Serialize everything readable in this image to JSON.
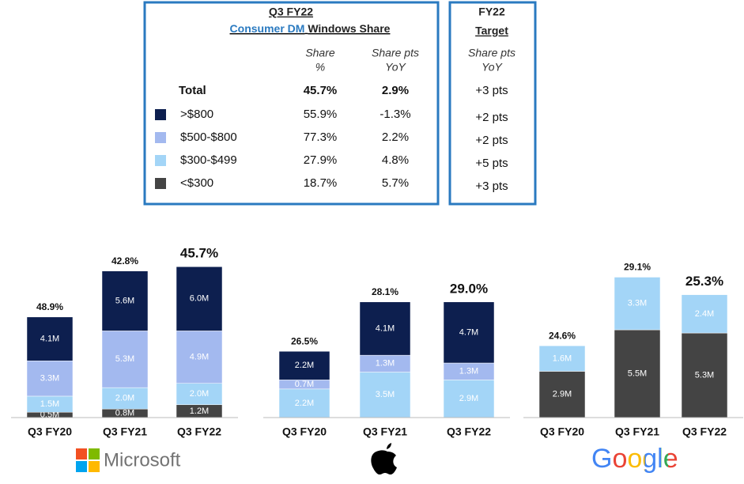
{
  "table": {
    "title": "Q3 FY22",
    "subtitle_link": "Consumer DM",
    "subtitle_rest": "Windows Share",
    "share_header": [
      "Share",
      "%"
    ],
    "yoy_header": [
      "Share pts",
      "YoY"
    ],
    "target_title": [
      "FY22",
      "Target"
    ],
    "target_header": [
      "Share pts",
      "YoY"
    ],
    "rows": [
      {
        "label": "Total",
        "share": "45.7%",
        "yoy": "2.9%",
        "target": "+3 pts"
      },
      {
        "label": ">$800",
        "color": "#0d1f4f",
        "share": "55.9%",
        "yoy": "-1.3%",
        "target": "+2 pts"
      },
      {
        "label": "$500-$800",
        "color": "#a3b9ef",
        "share": "77.3%",
        "yoy": "2.2%",
        "target": "+2 pts"
      },
      {
        "label": "$300-$499",
        "color": "#a3d5f7",
        "share": "27.9%",
        "yoy": "4.8%",
        "target": "+5 pts"
      },
      {
        "label": "<$300",
        "color": "#444444",
        "share": "18.7%",
        "yoy": "5.7%",
        "target": "+3 pts"
      }
    ]
  },
  "chart_data": [
    {
      "type": "bar",
      "stacked": true,
      "brand": "Microsoft",
      "categories": [
        "Q3 FY20",
        "Q3 FY21",
        "Q3 FY22"
      ],
      "ylim": [
        0,
        17
      ],
      "series": [
        {
          "color": "#444444",
          "values": [
            0.5,
            0.8,
            1.2
          ],
          "value_labels": [
            "0.5M",
            "0.8M",
            "1.2M"
          ]
        },
        {
          "color": "#a3d5f7",
          "values": [
            1.5,
            2.0,
            2.0
          ],
          "value_labels": [
            "1.5M",
            "2.0M",
            "2.0M"
          ]
        },
        {
          "color": "#a3b9ef",
          "values": [
            3.3,
            5.3,
            4.9
          ],
          "value_labels": [
            "3.3M",
            "5.3M",
            "4.9M"
          ]
        },
        {
          "color": "#0d1f4f",
          "values": [
            4.1,
            5.6,
            6.0
          ],
          "value_labels": [
            "4.1M",
            "5.6M",
            "6.0M"
          ]
        }
      ],
      "share": {
        "values": [
          48.9,
          42.8,
          45.7
        ],
        "value_labels": [
          "48.9%",
          "42.8%",
          "45.7%"
        ]
      }
    },
    {
      "type": "bar",
      "stacked": true,
      "categories": [
        "Q3 FY20",
        "Q3 FY21",
        "Q3 FY22"
      ],
      "ylim": [
        0,
        14
      ],
      "series": [
        {
          "color": "#a3d5f7",
          "values": [
            2.2,
            3.5,
            2.9
          ],
          "value_labels": [
            "2.2M",
            "3.5M",
            "2.9M"
          ]
        },
        {
          "color": "#a3b9ef",
          "values": [
            0.7,
            1.3,
            1.3
          ],
          "value_labels": [
            "0.7M",
            "1.3M",
            "1.3M"
          ]
        },
        {
          "color": "#0d1f4f",
          "values": [
            2.2,
            4.1,
            4.7
          ],
          "value_labels": [
            "2.2M",
            "4.1M",
            "4.7M"
          ]
        }
      ],
      "share": {
        "values": [
          26.5,
          28.1,
          29.0
        ],
        "value_labels": [
          "26.5%",
          "28.1%",
          "29.0%"
        ]
      }
    },
    {
      "type": "bar",
      "stacked": true,
      "brand": "Google",
      "categories": [
        "Q3 FY20",
        "Q3 FY21",
        "Q3 FY22"
      ],
      "ylim": [
        0,
        11.4
      ],
      "series": [
        {
          "color": "#444444",
          "values": [
            2.9,
            5.5,
            5.3
          ],
          "value_labels": [
            "2.9M",
            "5.5M",
            "5.3M"
          ]
        },
        {
          "color": "#a3d5f7",
          "values": [
            1.6,
            3.3,
            2.4
          ],
          "value_labels": [
            "1.6M",
            "3.3M",
            "2.4M"
          ]
        }
      ],
      "share": {
        "values": [
          24.6,
          29.1,
          25.3
        ],
        "value_labels": [
          "24.6%",
          "29.1%",
          "25.3%"
        ]
      }
    }
  ]
}
